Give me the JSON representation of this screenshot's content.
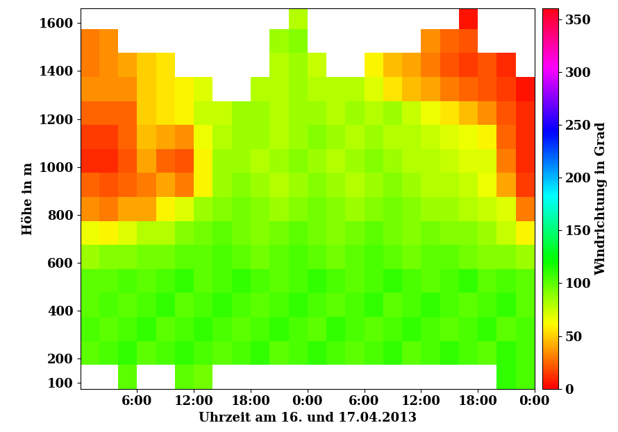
{
  "chart_data": {
    "type": "heatmap",
    "x_label": "Uhrzeit am 16. und 17.04.2013",
    "y_label": "Höhe in m",
    "xlim": [
      0,
      48
    ],
    "xticks": [
      {
        "value": 6,
        "label": "6:00"
      },
      {
        "value": 12,
        "label": "12:00"
      },
      {
        "value": 18,
        "label": "18:00"
      },
      {
        "value": 24,
        "label": "0:00"
      },
      {
        "value": 30,
        "label": "6:00"
      },
      {
        "value": 36,
        "label": "12:00"
      },
      {
        "value": 42,
        "label": "18:00"
      },
      {
        "value": 48,
        "label": "0:00"
      }
    ],
    "ylim": [
      75,
      1660
    ],
    "yticks": [
      100,
      200,
      400,
      600,
      800,
      1000,
      1200,
      1400,
      1600
    ],
    "x_edges": [
      0,
      2,
      4,
      6,
      8,
      10,
      12,
      14,
      16,
      18,
      20,
      22,
      24,
      26,
      28,
      30,
      32,
      34,
      36,
      38,
      40,
      42,
      44,
      46,
      48
    ],
    "y_edges": [
      75,
      175,
      275,
      375,
      475,
      575,
      675,
      775,
      875,
      975,
      1075,
      1175,
      1275,
      1375,
      1475,
      1575,
      1675
    ],
    "cells": [
      [
        null,
        null,
        100,
        null,
        null,
        100,
        95,
        null,
        null,
        null,
        null,
        null,
        null,
        null,
        null,
        null,
        null,
        null,
        null,
        null,
        null,
        null,
        110,
        105
      ],
      [
        100,
        105,
        110,
        100,
        105,
        110,
        105,
        100,
        105,
        110,
        100,
        105,
        110,
        105,
        100,
        105,
        110,
        100,
        105,
        110,
        105,
        100,
        110,
        105
      ],
      [
        105,
        100,
        105,
        110,
        100,
        105,
        110,
        105,
        100,
        105,
        110,
        105,
        100,
        110,
        105,
        100,
        105,
        110,
        105,
        100,
        105,
        110,
        100,
        105
      ],
      [
        100,
        105,
        100,
        105,
        110,
        100,
        105,
        110,
        105,
        100,
        105,
        110,
        105,
        100,
        105,
        110,
        100,
        105,
        110,
        105,
        100,
        105,
        110,
        100
      ],
      [
        100,
        100,
        105,
        100,
        105,
        110,
        100,
        105,
        110,
        105,
        100,
        105,
        110,
        105,
        100,
        105,
        110,
        105,
        100,
        105,
        110,
        100,
        105,
        100
      ],
      [
        85,
        90,
        90,
        95,
        95,
        100,
        100,
        105,
        100,
        95,
        100,
        105,
        100,
        95,
        100,
        105,
        100,
        95,
        100,
        100,
        95,
        90,
        90,
        85
      ],
      [
        65,
        60,
        70,
        80,
        80,
        90,
        95,
        100,
        95,
        90,
        95,
        100,
        95,
        90,
        95,
        100,
        95,
        90,
        95,
        90,
        90,
        85,
        75,
        60
      ],
      [
        35,
        30,
        40,
        40,
        60,
        70,
        85,
        90,
        95,
        90,
        85,
        90,
        95,
        90,
        85,
        90,
        95,
        90,
        85,
        85,
        80,
        75,
        70,
        30
      ],
      [
        25,
        20,
        25,
        30,
        40,
        30,
        60,
        85,
        90,
        85,
        80,
        85,
        90,
        85,
        80,
        85,
        90,
        85,
        80,
        80,
        75,
        65,
        40,
        15
      ],
      [
        10,
        10,
        20,
        40,
        25,
        20,
        60,
        85,
        85,
        80,
        85,
        90,
        85,
        80,
        85,
        90,
        85,
        80,
        80,
        75,
        70,
        70,
        30,
        10
      ],
      [
        15,
        15,
        25,
        45,
        40,
        35,
        65,
        80,
        85,
        85,
        80,
        85,
        90,
        85,
        80,
        85,
        80,
        80,
        75,
        70,
        65,
        60,
        25,
        10
      ],
      [
        25,
        25,
        25,
        50,
        55,
        60,
        75,
        75,
        85,
        85,
        80,
        85,
        85,
        80,
        85,
        80,
        85,
        75,
        65,
        55,
        45,
        35,
        20,
        10
      ],
      [
        35,
        35,
        35,
        50,
        55,
        60,
        70,
        null,
        null,
        80,
        80,
        85,
        80,
        80,
        80,
        70,
        55,
        45,
        40,
        30,
        25,
        20,
        15,
        5
      ],
      [
        30,
        35,
        40,
        50,
        55,
        null,
        null,
        null,
        null,
        null,
        80,
        85,
        75,
        null,
        null,
        60,
        45,
        40,
        30,
        20,
        15,
        20,
        10,
        null
      ],
      [
        30,
        35,
        null,
        null,
        null,
        null,
        null,
        null,
        null,
        null,
        85,
        90,
        null,
        null,
        null,
        null,
        null,
        null,
        35,
        25,
        20,
        null,
        null,
        null
      ],
      [
        null,
        null,
        null,
        null,
        null,
        null,
        null,
        null,
        null,
        null,
        null,
        80,
        null,
        null,
        null,
        null,
        null,
        null,
        null,
        null,
        5,
        null,
        null,
        null
      ]
    ],
    "colorbar": {
      "label": "Windrichtung in Grad",
      "range": [
        0,
        360
      ],
      "ticks": [
        0,
        50,
        100,
        150,
        200,
        250,
        300,
        350
      ]
    }
  }
}
